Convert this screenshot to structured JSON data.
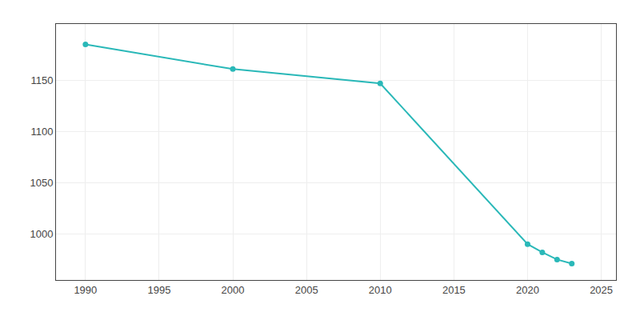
{
  "chart_data": {
    "type": "line",
    "x": [
      1990,
      2000,
      2010,
      2020,
      2021,
      2022,
      2023
    ],
    "values": [
      1185,
      1161,
      1147,
      990,
      982,
      975,
      971
    ],
    "color": "#2ab8b8",
    "marker": "circle",
    "xlim": [
      1988,
      2026
    ],
    "ylim": [
      955,
      1205
    ],
    "xticks": [
      1990,
      1995,
      2000,
      2005,
      2010,
      2015,
      2020,
      2025
    ],
    "yticks": [
      1000,
      1050,
      1100,
      1150
    ],
    "grid": true
  }
}
